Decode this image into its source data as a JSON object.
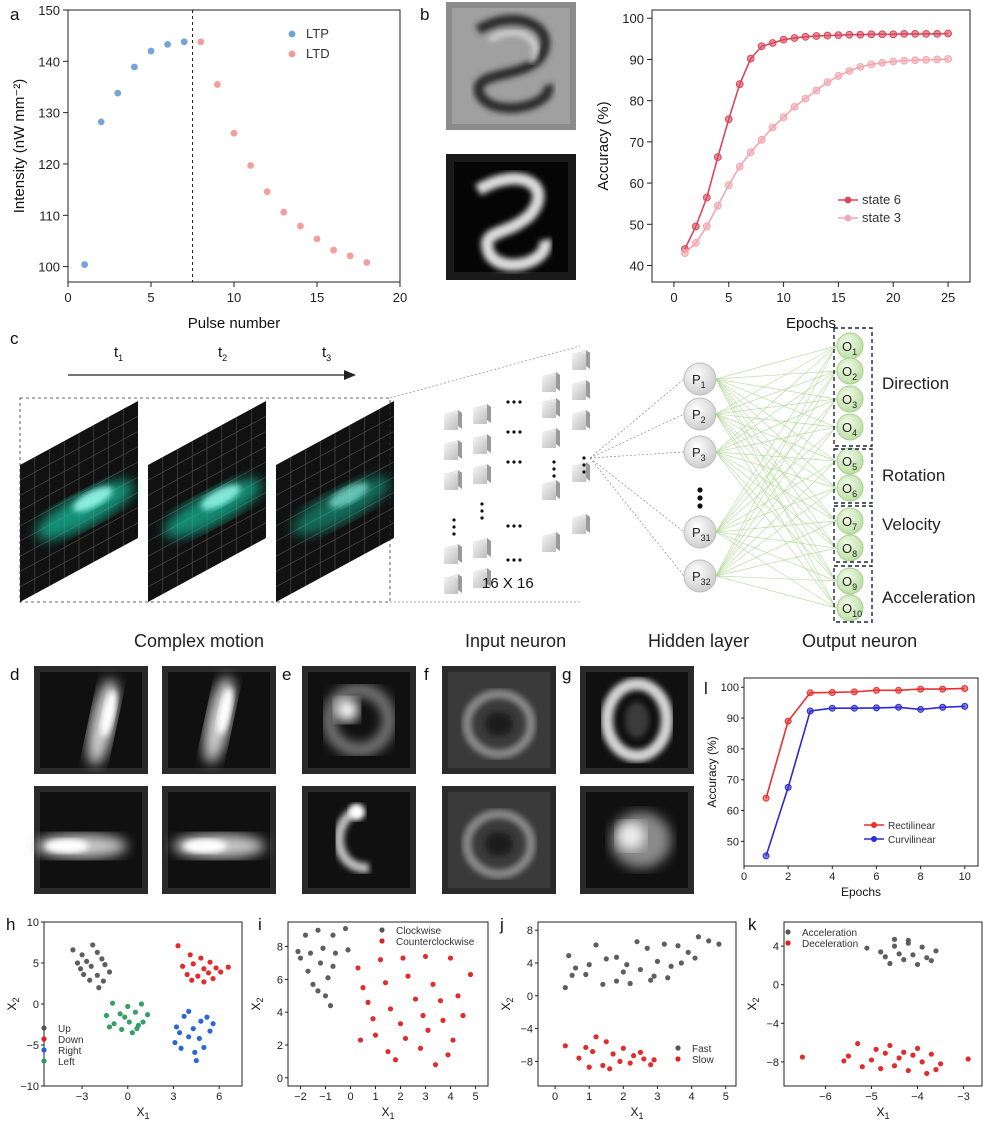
{
  "panel_labels": {
    "a": "a",
    "b": "b",
    "c": "c",
    "d": "d",
    "e": "e",
    "f": "f",
    "g": "g",
    "h": "h",
    "i": "i",
    "j": "j",
    "k": "k",
    "l": "l"
  },
  "diagram": {
    "time_labels": [
      {
        "base": "t",
        "sub": "1"
      },
      {
        "base": "t",
        "sub": "2"
      },
      {
        "base": "t",
        "sub": "3"
      }
    ],
    "grid_size_label": "16 X 16",
    "hidden_nodes": [
      {
        "base": "P",
        "sub": "1"
      },
      {
        "base": "P",
        "sub": "2"
      },
      {
        "base": "P",
        "sub": "3"
      },
      {
        "base": "P",
        "sub": "31"
      },
      {
        "base": "P",
        "sub": "32"
      }
    ],
    "output_nodes": [
      {
        "base": "O",
        "sub": "1"
      },
      {
        "base": "O",
        "sub": "2"
      },
      {
        "base": "O",
        "sub": "3"
      },
      {
        "base": "O",
        "sub": "4"
      },
      {
        "base": "O",
        "sub": "5"
      },
      {
        "base": "O",
        "sub": "6"
      },
      {
        "base": "O",
        "sub": "7"
      },
      {
        "base": "O",
        "sub": "8"
      },
      {
        "base": "O",
        "sub": "9"
      },
      {
        "base": "O",
        "sub": "10"
      }
    ],
    "groups": [
      "Direction",
      "Rotation",
      "Velocity",
      "Acceleration"
    ],
    "captions": [
      "Complex motion",
      "Input neuron",
      "Hidden layer",
      "Output neuron"
    ]
  },
  "chart_data": [
    {
      "id": "a",
      "type": "scatter",
      "xlabel": "Pulse number",
      "ylabel": "Intensity (nW mm⁻²)",
      "xlim": [
        0,
        20
      ],
      "ylim": [
        97,
        150
      ],
      "xticks": [
        0,
        5,
        10,
        15,
        20
      ],
      "yticks": [
        100,
        110,
        120,
        130,
        140,
        150
      ],
      "divider_x": 7.5,
      "legend": "top-right",
      "series": [
        {
          "name": "LTP",
          "color": "#6f9fd6",
          "x": [
            1,
            2,
            3,
            4,
            5,
            6,
            7
          ],
          "y": [
            100.4,
            128.2,
            133.8,
            138.9,
            142.0,
            143.3,
            143.8
          ]
        },
        {
          "name": "LTD",
          "color": "#f29a9a",
          "x": [
            8,
            9,
            10,
            11,
            12,
            13,
            14,
            15,
            16,
            17,
            18
          ],
          "y": [
            143.8,
            135.5,
            126.0,
            119.7,
            114.6,
            110.6,
            107.9,
            105.4,
            103.2,
            102.1,
            100.8
          ]
        }
      ]
    },
    {
      "id": "b",
      "type": "line",
      "xlabel": "Epochs",
      "ylabel": "Accuracy (%)",
      "xlim": [
        -2,
        27
      ],
      "ylim": [
        36,
        102
      ],
      "xticks": [
        0,
        5,
        10,
        15,
        20,
        25
      ],
      "yticks": [
        40,
        50,
        60,
        70,
        80,
        90,
        100
      ],
      "legend": "bottom-right",
      "series": [
        {
          "name": "state 6",
          "color": "#d9475a",
          "x": [
            1,
            2,
            3,
            4,
            5,
            6,
            7,
            8,
            9,
            10,
            11,
            12,
            13,
            14,
            15,
            16,
            17,
            18,
            19,
            20,
            21,
            22,
            23,
            24,
            25
          ],
          "y": [
            44.0,
            49.5,
            56.5,
            66.3,
            75.5,
            84.0,
            90.2,
            93.2,
            94.0,
            94.8,
            95.2,
            95.5,
            95.7,
            95.8,
            95.9,
            96.0,
            96.0,
            96.1,
            96.1,
            96.1,
            96.2,
            96.2,
            96.2,
            96.2,
            96.3
          ]
        },
        {
          "name": "state 3",
          "color": "#f2a6ae",
          "x": [
            1,
            2,
            3,
            4,
            5,
            6,
            7,
            8,
            9,
            10,
            11,
            12,
            13,
            14,
            15,
            16,
            17,
            18,
            19,
            20,
            21,
            22,
            23,
            24,
            25
          ],
          "y": [
            43.0,
            45.5,
            49.5,
            54.5,
            59.5,
            64.0,
            67.5,
            70.5,
            73.5,
            76.0,
            78.5,
            80.5,
            82.5,
            84.5,
            86.0,
            87.2,
            88.2,
            88.8,
            89.2,
            89.5,
            89.7,
            89.8,
            89.9,
            90.0,
            90.1
          ]
        }
      ]
    },
    {
      "id": "l",
      "type": "line",
      "xlabel": "Epochs",
      "ylabel": "Accuracy (%)",
      "xlim": [
        0,
        10.6
      ],
      "ylim": [
        42,
        103
      ],
      "xticks": [
        0,
        2,
        4,
        6,
        8,
        10
      ],
      "yticks": [
        50,
        60,
        70,
        80,
        90,
        100
      ],
      "legend": "bottom-right",
      "series": [
        {
          "name": "Rectilinear",
          "color": "#e83030",
          "x": [
            1,
            2,
            3,
            4,
            5,
            6,
            7,
            8,
            9,
            10
          ],
          "y": [
            64.0,
            89.0,
            98.2,
            98.3,
            98.5,
            99.0,
            99.0,
            99.4,
            99.4,
            99.6
          ]
        },
        {
          "name": "Curvilinear",
          "color": "#2b2bd0",
          "x": [
            1,
            2,
            3,
            4,
            5,
            6,
            7,
            8,
            9,
            10
          ],
          "y": [
            45.3,
            67.5,
            92.3,
            93.2,
            93.2,
            93.3,
            93.5,
            92.8,
            93.5,
            93.8
          ]
        }
      ]
    },
    {
      "id": "h",
      "type": "scatter",
      "xlabel": "X1",
      "ylabel": "X2",
      "xlim": [
        -5.5,
        7.5
      ],
      "ylim": [
        -10,
        10
      ],
      "xticks": [
        -3,
        0,
        3,
        6
      ],
      "yticks": [
        -10,
        -5,
        0,
        5,
        10
      ],
      "legend": "bottom-left",
      "series": [
        {
          "name": "Up",
          "color": "#555555",
          "x": [
            -3.6,
            -2.3,
            -3.0,
            -2.0,
            -2.7,
            -1.7,
            -3.1,
            -2.4,
            -1.5,
            -2.9,
            -2.0,
            -1.2,
            -2.5,
            -1.6,
            -3.3,
            -1.9
          ],
          "y": [
            6.6,
            7.2,
            6.0,
            6.3,
            5.2,
            5.5,
            4.3,
            4.6,
            4.8,
            3.6,
            3.5,
            3.9,
            2.9,
            2.8,
            5.0,
            2.0
          ]
        },
        {
          "name": "Down",
          "color": "#e02020",
          "x": [
            3.3,
            4.1,
            4.8,
            5.4,
            6.6,
            3.6,
            4.3,
            5.0,
            5.8,
            3.9,
            4.6,
            5.3,
            6.1,
            4.2,
            5.0,
            5.6
          ],
          "y": [
            7.1,
            6.0,
            5.6,
            5.1,
            4.5,
            4.6,
            4.9,
            4.3,
            4.4,
            3.6,
            3.4,
            3.8,
            3.9,
            2.9,
            2.7,
            3.1
          ]
        },
        {
          "name": "Right",
          "color": "#2060d0",
          "x": [
            3.1,
            4.5,
            5.0,
            3.5,
            4.0,
            5.4,
            3.2,
            4.3,
            4.8,
            3.7,
            5.2,
            4.0,
            4.7,
            3.4,
            4.4,
            5.6
          ],
          "y": [
            -4.7,
            -6.9,
            -5.3,
            -5.4,
            -4.0,
            -3.3,
            -2.8,
            -3.0,
            -2.1,
            -1.5,
            -1.6,
            -0.9,
            -4.2,
            -3.5,
            -5.9,
            -2.4
          ]
        },
        {
          "name": "Left",
          "color": "#2a9a60",
          "x": [
            -1.0,
            0.0,
            0.9,
            -1.4,
            -0.5,
            0.5,
            1.3,
            -0.9,
            0.1,
            0.7,
            -0.4,
            0.3,
            -1.2,
            1.0,
            -0.2,
            0.6
          ],
          "y": [
            0.1,
            -0.3,
            0.0,
            -1.4,
            -1.2,
            -1.0,
            -1.3,
            -2.4,
            -2.2,
            -2.6,
            -3.1,
            -3.5,
            -2.8,
            -2.2,
            -1.6,
            -3.0
          ]
        }
      ]
    },
    {
      "id": "i",
      "type": "scatter",
      "xlabel": "X1",
      "ylabel": "X2",
      "xlim": [
        -2.5,
        5.5
      ],
      "ylim": [
        -0.5,
        9.5
      ],
      "xticks": [
        -2,
        -1,
        0,
        1,
        2,
        3,
        4,
        5
      ],
      "yticks": [
        0,
        2,
        4,
        6,
        8
      ],
      "legend": "top-right",
      "series": [
        {
          "name": "Clockwise",
          "color": "#555555",
          "x": [
            -2.1,
            -1.8,
            -1.3,
            -0.7,
            -0.2,
            -2.0,
            -1.6,
            -1.1,
            -0.6,
            -0.1,
            -1.7,
            -1.2,
            -0.7,
            -1.5,
            -0.9,
            -1.3,
            -0.8,
            -1.0
          ],
          "y": [
            7.7,
            8.7,
            9.0,
            8.7,
            9.1,
            7.3,
            7.6,
            7.9,
            7.6,
            7.8,
            6.5,
            7.0,
            6.8,
            5.7,
            6.1,
            5.3,
            4.4,
            5.0
          ]
        },
        {
          "name": "Counterclockwise",
          "color": "#e02020",
          "x": [
            0.3,
            1.2,
            2.1,
            3.0,
            4.0,
            4.8,
            0.5,
            1.4,
            2.3,
            3.3,
            4.3,
            0.7,
            1.6,
            2.6,
            3.6,
            4.5,
            0.9,
            2.0,
            2.9,
            3.7,
            0.4,
            1.0,
            2.2,
            3.1,
            4.1,
            1.5,
            2.8,
            3.9,
            1.8,
            3.4
          ],
          "y": [
            6.7,
            7.2,
            7.3,
            7.4,
            7.3,
            6.3,
            5.5,
            5.8,
            6.2,
            5.7,
            5.0,
            4.6,
            4.2,
            4.8,
            4.7,
            3.8,
            3.6,
            3.3,
            3.8,
            3.5,
            2.3,
            2.6,
            2.4,
            2.9,
            2.3,
            1.6,
            1.8,
            1.4,
            1.1,
            0.8
          ]
        }
      ]
    },
    {
      "id": "j",
      "type": "scatter",
      "xlabel": "X1",
      "ylabel": "X2",
      "xlim": [
        -0.5,
        5.3
      ],
      "ylim": [
        -11,
        9
      ],
      "xticks": [
        0,
        1,
        2,
        3,
        4,
        5
      ],
      "yticks": [
        -8,
        -4,
        0,
        4,
        8
      ],
      "legend": "bottom-right",
      "series": [
        {
          "name": "Fast",
          "color": "#555555",
          "x": [
            0.3,
            0.5,
            0.4,
            0.9,
            1.2,
            1.4,
            1.8,
            2.1,
            2.4,
            2.7,
            2.9,
            3.2,
            3.6,
            3.9,
            4.2,
            4.5,
            4.8,
            0.6,
            1.0,
            1.5,
            2.0,
            2.5,
            3.0,
            3.4,
            3.7,
            4.1,
            2.2,
            2.8,
            1.8,
            3.3
          ],
          "y": [
            1.0,
            2.5,
            4.9,
            2.6,
            6.2,
            1.4,
            4.7,
            3.8,
            6.6,
            5.8,
            2.4,
            6.3,
            6.1,
            5.3,
            7.2,
            6.7,
            6.3,
            3.4,
            3.8,
            4.5,
            2.9,
            3.2,
            4.2,
            3.6,
            4.0,
            4.6,
            1.5,
            1.9,
            1.8,
            2.2
          ]
        },
        {
          "name": "Slow",
          "color": "#e02020",
          "x": [
            0.3,
            0.9,
            1.2,
            1.5,
            1.1,
            1.7,
            2.0,
            2.3,
            2.5,
            0.7,
            1.4,
            1.9,
            2.6,
            2.8,
            1.0,
            1.6,
            2.2,
            2.9
          ],
          "y": [
            -6.1,
            -6.3,
            -5.0,
            -5.6,
            -6.8,
            -7.1,
            -6.4,
            -7.3,
            -6.9,
            -7.6,
            -8.5,
            -8.0,
            -7.7,
            -8.4,
            -8.7,
            -8.9,
            -8.2,
            -7.8
          ]
        }
      ]
    },
    {
      "id": "k",
      "type": "scatter",
      "xlabel": "X1",
      "ylabel": "X2",
      "xlim": [
        -6.9,
        -2.6
      ],
      "ylim": [
        -10.5,
        6.5
      ],
      "xticks": [
        -6,
        -5,
        -4,
        -3
      ],
      "yticks": [
        -8,
        -4,
        0,
        4
      ],
      "legend": "top-left",
      "series": [
        {
          "name": "Acceleration",
          "color": "#555555",
          "x": [
            -5.1,
            -4.8,
            -4.5,
            -4.2,
            -3.9,
            -3.6,
            -4.7,
            -4.4,
            -4.1,
            -3.8,
            -4.6,
            -4.3,
            -4.0,
            -3.7,
            -4.5,
            -4.2
          ],
          "y": [
            3.8,
            3.4,
            4.0,
            4.6,
            3.9,
            3.5,
            2.9,
            3.2,
            3.1,
            2.8,
            2.2,
            2.6,
            2.1,
            2.5,
            4.7,
            4.3
          ]
        },
        {
          "name": "Deceleration",
          "color": "#e02020",
          "x": [
            -6.5,
            -5.6,
            -5.3,
            -4.9,
            -4.6,
            -4.3,
            -4.0,
            -3.7,
            -5.5,
            -5.0,
            -4.7,
            -4.4,
            -4.1,
            -3.9,
            -3.5,
            -2.9,
            -5.2,
            -4.8,
            -4.5,
            -4.2,
            -3.8,
            -3.6
          ],
          "y": [
            -7.5,
            -7.9,
            -6.1,
            -6.7,
            -6.3,
            -7.0,
            -6.6,
            -7.2,
            -7.4,
            -7.8,
            -7.1,
            -7.6,
            -7.3,
            -8.0,
            -8.2,
            -7.7,
            -8.5,
            -8.7,
            -8.4,
            -8.9,
            -9.2,
            -8.8
          ]
        }
      ]
    }
  ]
}
